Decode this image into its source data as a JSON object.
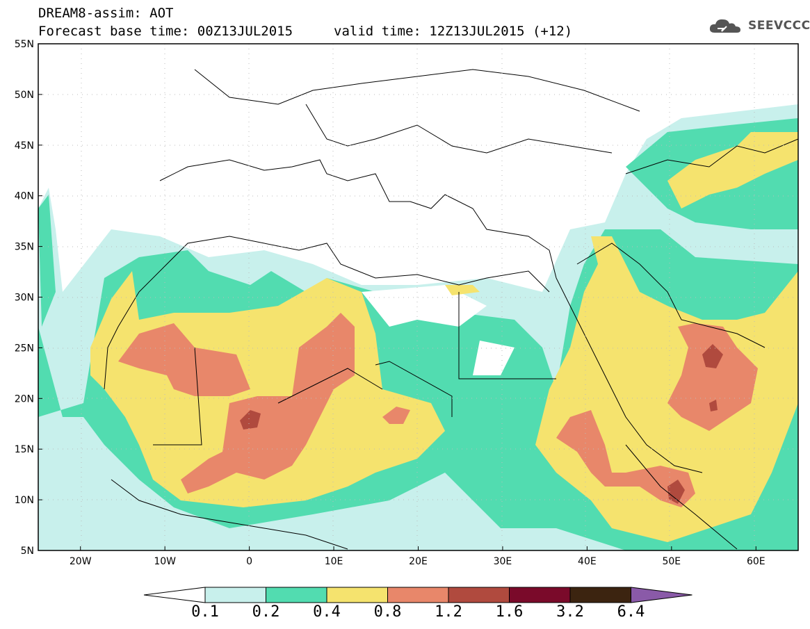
{
  "header": {
    "line1": "DREAM8-assim: AOT",
    "line2": "Forecast base time: 00Z13JUL2015",
    "valid": "valid time: 12Z13JUL2015 (+12)"
  },
  "logo": {
    "text": "SEEVCCC",
    "icon": "cloud-icon"
  },
  "axes": {
    "lat_labels": [
      "55N",
      "50N",
      "45N",
      "40N",
      "35N",
      "30N",
      "25N",
      "20N",
      "15N",
      "10N",
      "5N"
    ],
    "lon_labels": [
      "20W",
      "10W",
      "0",
      "10E",
      "20E",
      "30E",
      "40E",
      "50E",
      "60E"
    ],
    "lat_range": [
      5,
      55
    ],
    "lon_range": [
      -25,
      65
    ]
  },
  "colorbar": {
    "levels": [
      "0.1",
      "0.2",
      "0.4",
      "0.8",
      "1.2",
      "1.6",
      "3.2",
      "6.4"
    ],
    "colors": [
      "#ffffff",
      "#c8f0ec",
      "#52dcb0",
      "#f5e36e",
      "#e8876a",
      "#b04a3e",
      "#7a0a2a",
      "#3c2410",
      "#8a5aa8"
    ]
  }
}
